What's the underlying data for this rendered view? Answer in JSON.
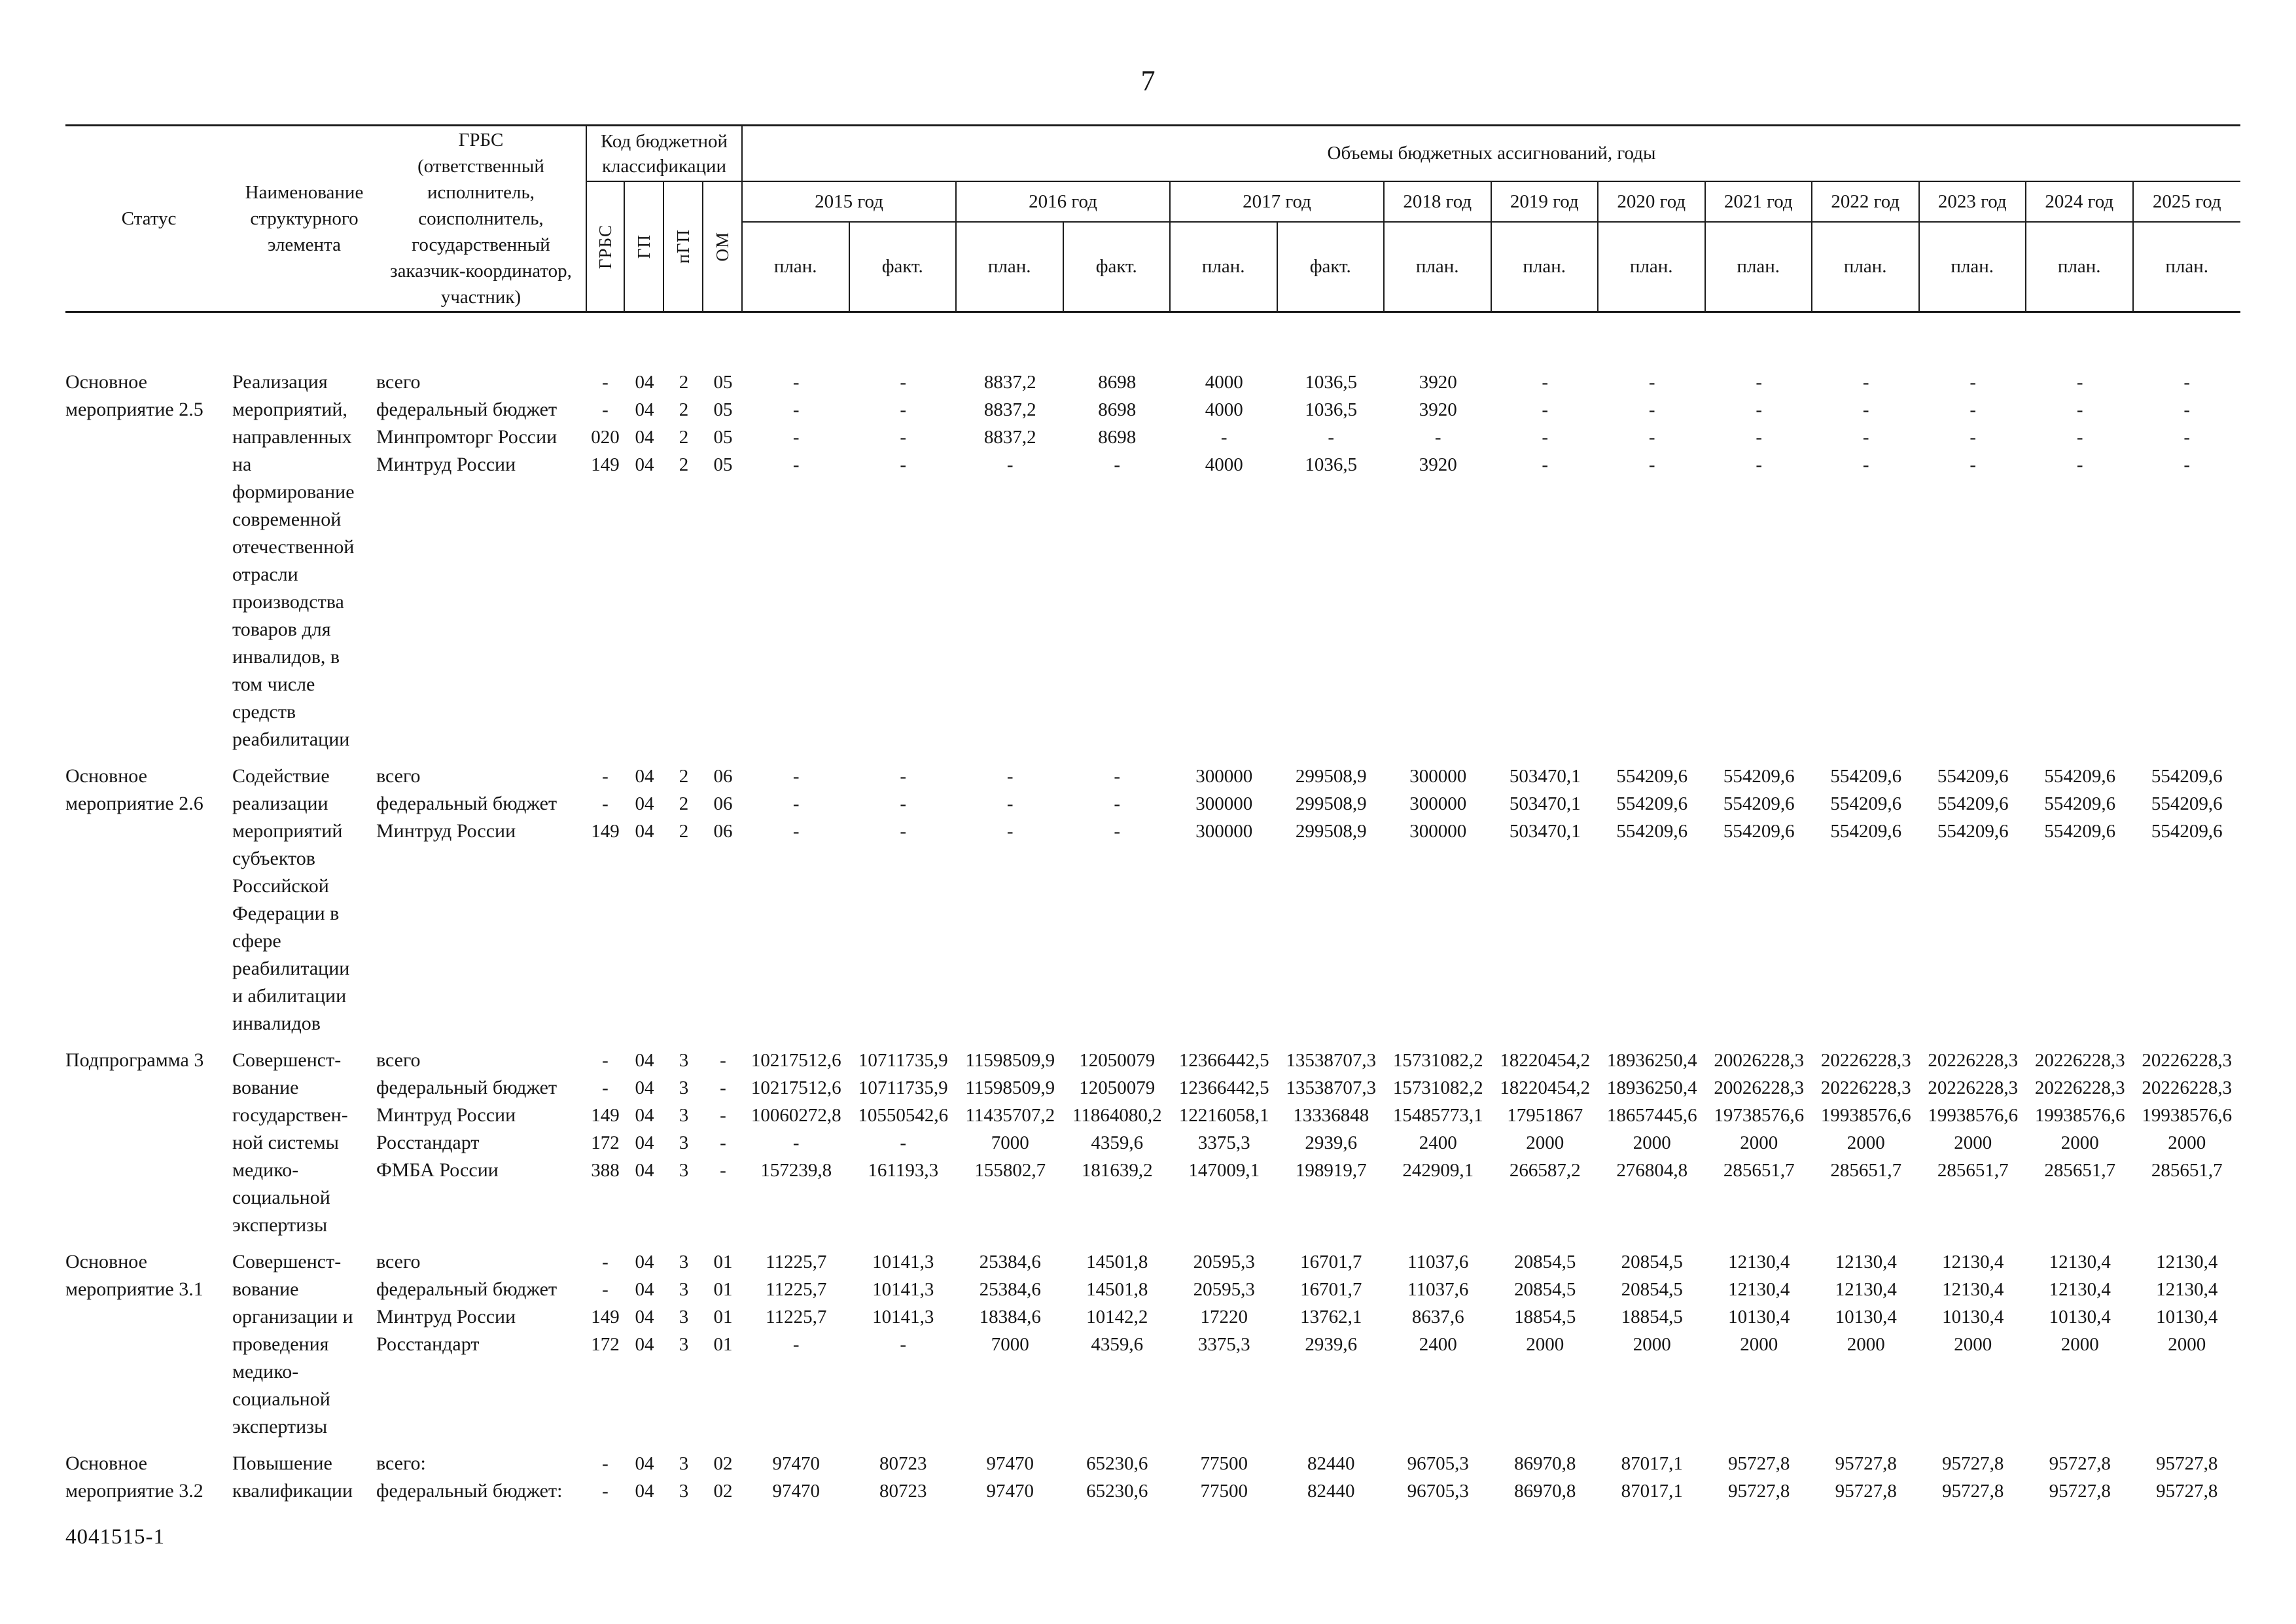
{
  "page": {
    "number": "7",
    "footer_code": "4041515-1"
  },
  "table": {
    "header": {
      "status": "Статус",
      "name": "Наименование\nструктурного\nэлемента",
      "grbs": "ГРБС\n(ответственный\nисполнитель,\nсоисполнитель,\nгосударственный\nзаказчик-координатор,\nучастник)",
      "budget_code": "Код бюджетной\nклассификации",
      "budget_code_cols": [
        "ГРБС",
        "ГП",
        "пГП",
        "ОМ"
      ],
      "volumes_title": "Объемы бюджетных ассигнований, годы",
      "year_groups": [
        {
          "label": "2015 год",
          "cols": [
            "план.",
            "факт."
          ]
        },
        {
          "label": "2016 год",
          "cols": [
            "план.",
            "факт."
          ]
        },
        {
          "label": "2017 год",
          "cols": [
            "план.",
            "факт."
          ]
        },
        {
          "label": "2018 год",
          "cols": [
            "план."
          ]
        },
        {
          "label": "2019 год",
          "cols": [
            "план."
          ]
        },
        {
          "label": "2020 год",
          "cols": [
            "план."
          ]
        },
        {
          "label": "2021 год",
          "cols": [
            "план."
          ]
        },
        {
          "label": "2022 год",
          "cols": [
            "план."
          ]
        },
        {
          "label": "2023 год",
          "cols": [
            "план."
          ]
        },
        {
          "label": "2024 год",
          "cols": [
            "план."
          ]
        },
        {
          "label": "2025 год",
          "cols": [
            "план."
          ]
        }
      ]
    },
    "rows": [
      {
        "status": "Основное\nмероприятие 2.5",
        "name": "Реализация\nмероприятий,\nнаправленных\nна\nформирование\nсовременной\nотечественной\nотрасли\nпроизводства\nтоваров для\nинвалидов, в\nтом числе\nсредств\nреабилитации",
        "entries": [
          {
            "grbs": "всего",
            "code": [
              "-",
              "04",
              "2",
              "05"
            ],
            "values": [
              "-",
              "-",
              "8837,2",
              "8698",
              "4000",
              "1036,5",
              "3920",
              "-",
              "-",
              "-",
              "-",
              "-",
              "-",
              "-"
            ]
          },
          {
            "grbs": "федеральный бюджет",
            "code": [
              "-",
              "04",
              "2",
              "05"
            ],
            "values": [
              "-",
              "-",
              "8837,2",
              "8698",
              "4000",
              "1036,5",
              "3920",
              "-",
              "-",
              "-",
              "-",
              "-",
              "-",
              "-"
            ]
          },
          {
            "grbs": "Минпромторг России",
            "code": [
              "020",
              "04",
              "2",
              "05"
            ],
            "values": [
              "-",
              "-",
              "8837,2",
              "8698",
              "-",
              "-",
              "-",
              "-",
              "-",
              "-",
              "-",
              "-",
              "-",
              "-"
            ]
          },
          {
            "grbs": "Минтруд России",
            "code": [
              "149",
              "04",
              "2",
              "05"
            ],
            "values": [
              "-",
              "-",
              "-",
              "-",
              "4000",
              "1036,5",
              "3920",
              "-",
              "-",
              "-",
              "-",
              "-",
              "-",
              "-"
            ]
          }
        ]
      },
      {
        "status": "Основное\nмероприятие 2.6",
        "name": "Содействие\nреализации\nмероприятий\nсубъектов\nРоссийской\nФедерации в\nсфере\nреабилитации\nи абилитации\nинвалидов",
        "entries": [
          {
            "grbs": "всего",
            "code": [
              "-",
              "04",
              "2",
              "06"
            ],
            "values": [
              "-",
              "-",
              "-",
              "-",
              "300000",
              "299508,9",
              "300000",
              "503470,1",
              "554209,6",
              "554209,6",
              "554209,6",
              "554209,6",
              "554209,6",
              "554209,6"
            ]
          },
          {
            "grbs": "федеральный бюджет",
            "code": [
              "-",
              "04",
              "2",
              "06"
            ],
            "values": [
              "-",
              "-",
              "-",
              "-",
              "300000",
              "299508,9",
              "300000",
              "503470,1",
              "554209,6",
              "554209,6",
              "554209,6",
              "554209,6",
              "554209,6",
              "554209,6"
            ]
          },
          {
            "grbs": "Минтруд России",
            "code": [
              "149",
              "04",
              "2",
              "06"
            ],
            "values": [
              "-",
              "-",
              "-",
              "-",
              "300000",
              "299508,9",
              "300000",
              "503470,1",
              "554209,6",
              "554209,6",
              "554209,6",
              "554209,6",
              "554209,6",
              "554209,6"
            ]
          }
        ]
      },
      {
        "status": "Подпрограмма 3",
        "name": "Совершенст-\nвование\nгосударствен-\nной системы\nмедико-\nсоциальной\nэкспертизы",
        "entries": [
          {
            "grbs": "всего",
            "code": [
              "-",
              "04",
              "3",
              "-"
            ],
            "values": [
              "10217512,6",
              "10711735,9",
              "11598509,9",
              "12050079",
              "12366442,5",
              "13538707,3",
              "15731082,2",
              "18220454,2",
              "18936250,4",
              "20026228,3",
              "20226228,3",
              "20226228,3",
              "20226228,3",
              "20226228,3"
            ]
          },
          {
            "grbs": "федеральный бюджет",
            "code": [
              "-",
              "04",
              "3",
              "-"
            ],
            "values": [
              "10217512,6",
              "10711735,9",
              "11598509,9",
              "12050079",
              "12366442,5",
              "13538707,3",
              "15731082,2",
              "18220454,2",
              "18936250,4",
              "20026228,3",
              "20226228,3",
              "20226228,3",
              "20226228,3",
              "20226228,3"
            ]
          },
          {
            "grbs": "Минтруд России",
            "code": [
              "149",
              "04",
              "3",
              "-"
            ],
            "values": [
              "10060272,8",
              "10550542,6",
              "11435707,2",
              "11864080,2",
              "12216058,1",
              "13336848",
              "15485773,1",
              "17951867",
              "18657445,6",
              "19738576,6",
              "19938576,6",
              "19938576,6",
              "19938576,6",
              "19938576,6"
            ]
          },
          {
            "grbs": "Росстандарт",
            "code": [
              "172",
              "04",
              "3",
              "-"
            ],
            "values": [
              "-",
              "-",
              "7000",
              "4359,6",
              "3375,3",
              "2939,6",
              "2400",
              "2000",
              "2000",
              "2000",
              "2000",
              "2000",
              "2000",
              "2000"
            ]
          },
          {
            "grbs": "ФМБА России",
            "code": [
              "388",
              "04",
              "3",
              "-"
            ],
            "values": [
              "157239,8",
              "161193,3",
              "155802,7",
              "181639,2",
              "147009,1",
              "198919,7",
              "242909,1",
              "266587,2",
              "276804,8",
              "285651,7",
              "285651,7",
              "285651,7",
              "285651,7",
              "285651,7"
            ]
          }
        ]
      },
      {
        "status": "Основное\nмероприятие 3.1",
        "name": "Совершенст-\nвование\nорганизации и\nпроведения\nмедико-\nсоциальной\nэкспертизы",
        "entries": [
          {
            "grbs": "всего",
            "code": [
              "-",
              "04",
              "3",
              "01"
            ],
            "values": [
              "11225,7",
              "10141,3",
              "25384,6",
              "14501,8",
              "20595,3",
              "16701,7",
              "11037,6",
              "20854,5",
              "20854,5",
              "12130,4",
              "12130,4",
              "12130,4",
              "12130,4",
              "12130,4"
            ]
          },
          {
            "grbs": "федеральный бюджет",
            "code": [
              "-",
              "04",
              "3",
              "01"
            ],
            "values": [
              "11225,7",
              "10141,3",
              "25384,6",
              "14501,8",
              "20595,3",
              "16701,7",
              "11037,6",
              "20854,5",
              "20854,5",
              "12130,4",
              "12130,4",
              "12130,4",
              "12130,4",
              "12130,4"
            ]
          },
          {
            "grbs": "Минтруд России",
            "code": [
              "149",
              "04",
              "3",
              "01"
            ],
            "values": [
              "11225,7",
              "10141,3",
              "18384,6",
              "10142,2",
              "17220",
              "13762,1",
              "8637,6",
              "18854,5",
              "18854,5",
              "10130,4",
              "10130,4",
              "10130,4",
              "10130,4",
              "10130,4"
            ]
          },
          {
            "grbs": "Росстандарт",
            "code": [
              "172",
              "04",
              "3",
              "01"
            ],
            "values": [
              "-",
              "-",
              "7000",
              "4359,6",
              "3375,3",
              "2939,6",
              "2400",
              "2000",
              "2000",
              "2000",
              "2000",
              "2000",
              "2000",
              "2000"
            ]
          }
        ]
      },
      {
        "status": "Основное\nмероприятие 3.2",
        "name": "Повышение\nквалификации",
        "entries": [
          {
            "grbs": "всего:",
            "code": [
              "-",
              "04",
              "3",
              "02"
            ],
            "values": [
              "97470",
              "80723",
              "97470",
              "65230,6",
              "77500",
              "82440",
              "96705,3",
              "86970,8",
              "87017,1",
              "95727,8",
              "95727,8",
              "95727,8",
              "95727,8",
              "95727,8"
            ]
          },
          {
            "grbs": "федеральный бюджет:",
            "code": [
              "-",
              "04",
              "3",
              "02"
            ],
            "values": [
              "97470",
              "80723",
              "97470",
              "65230,6",
              "77500",
              "82440",
              "96705,3",
              "86970,8",
              "87017,1",
              "95727,8",
              "95727,8",
              "95727,8",
              "95727,8",
              "95727,8"
            ]
          }
        ]
      }
    ]
  }
}
